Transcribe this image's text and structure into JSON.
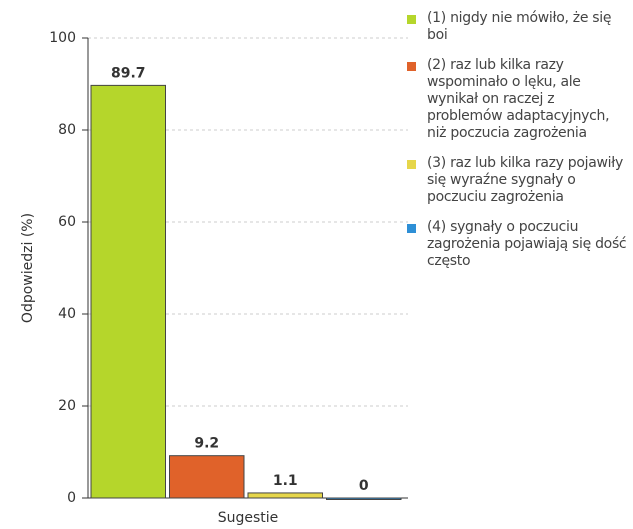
{
  "chart_data": {
    "type": "bar",
    "categories": [
      "Sugestie"
    ],
    "ylabel": "Odpowiedzi (%)",
    "ylim": [
      0,
      100
    ],
    "yticks": [
      0,
      20,
      40,
      60,
      80,
      100
    ],
    "grid": true,
    "series": [
      {
        "name": "(1) nigdy nie mówiło, że się boi",
        "color": "#b5d62b",
        "values": [
          89.7
        ]
      },
      {
        "name": "(2) raz lub kilka razy wspominało o lęku, ale wynikał on raczej z problemów adaptacyjnych, niż poczucia zagrożenia",
        "color": "#e0622a",
        "values": [
          9.2
        ]
      },
      {
        "name": "(3) raz lub kilka razy pojawiły się wyraźne sygnały o poczuciu zagrożenia",
        "color": "#e6d64a",
        "values": [
          1.1
        ]
      },
      {
        "name": "(4) sygnały o poczuciu zagrożenia pojawiają się dość często",
        "color": "#2e8fd6",
        "values": [
          0
        ]
      }
    ]
  }
}
